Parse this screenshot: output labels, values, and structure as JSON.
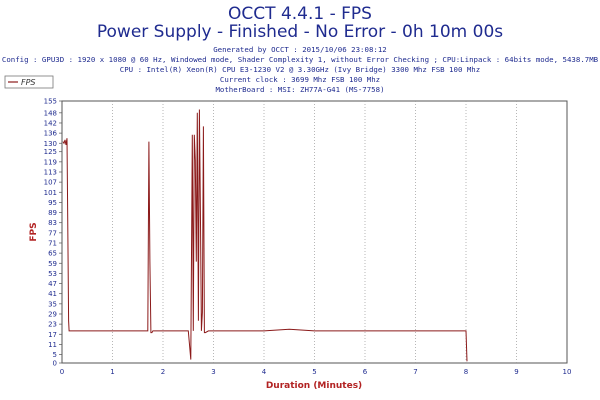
{
  "header": {
    "title": "OCCT 4.4.1 - FPS",
    "subtitle": "Power Supply - Finished - No Error - 0h 10m 00s",
    "generated": "Generated by OCCT : 2015/10/06 23:08:12",
    "config": "Config : GPU3D : 1920 x 1080 @ 60 Hz, Windowed mode, Shader Complexity 1, without Error Checking ; CPU:Linpack : 64bits mode, 5438.7MB",
    "cpu": "CPU : Intel(R) Xeon(R) CPU E3-1230 V2 @ 3.30GHz (Ivy Bridge) 3300 Mhz FSB 100 Mhz",
    "clock": "Current clock : 3699 Mhz FSB 100 Mhz",
    "motherboard": "MotherBoard : MSI: ZH77A-G41 (MS-7758)"
  },
  "chart_data": {
    "type": "line",
    "xlabel": "Duration (Minutes)",
    "ylabel": "FPS",
    "xlim": [
      0,
      10
    ],
    "ylim": [
      0,
      155
    ],
    "xticks": [
      0,
      1,
      2,
      3,
      4,
      5,
      6,
      7,
      8,
      9,
      10
    ],
    "yticks": [
      0,
      5,
      11,
      17,
      23,
      29,
      35,
      41,
      47,
      53,
      59,
      65,
      71,
      77,
      83,
      89,
      95,
      101,
      107,
      113,
      119,
      125,
      130,
      136,
      142,
      148,
      155
    ],
    "legend": "top-left",
    "grid": true,
    "series": [
      {
        "name": "FPS",
        "color": "#8b1a1a",
        "x": [
          0.02,
          0.04,
          0.06,
          0.08,
          0.1,
          0.12,
          0.13,
          0.14,
          0.15,
          0.2,
          0.5,
          1.0,
          1.5,
          1.68,
          1.7,
          1.72,
          1.74,
          1.76,
          1.78,
          1.8,
          2.0,
          2.5,
          2.55,
          2.58,
          2.6,
          2.62,
          2.64,
          2.66,
          2.68,
          2.7,
          2.72,
          2.74,
          2.76,
          2.78,
          2.8,
          2.82,
          2.84,
          2.9,
          3.5,
          4.0,
          4.5,
          5.0,
          5.5,
          6.0,
          6.5,
          7.0,
          7.5,
          7.9,
          7.95,
          8.0,
          8.02
        ],
        "y": [
          131,
          130,
          132,
          129,
          133,
          60,
          25,
          19,
          19,
          19,
          19,
          19,
          19,
          19,
          19,
          131,
          60,
          18,
          18,
          19,
          19,
          19,
          2,
          135,
          19,
          135,
          120,
          60,
          148,
          25,
          150,
          90,
          19,
          30,
          140,
          18,
          18,
          19,
          19,
          19,
          20,
          19,
          19,
          19,
          19,
          19,
          19,
          19,
          19,
          19,
          1
        ]
      }
    ]
  }
}
